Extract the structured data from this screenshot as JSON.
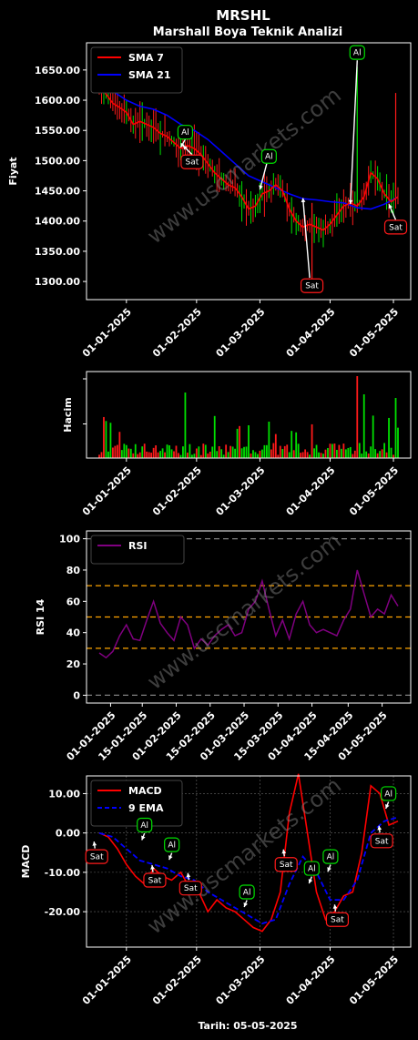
{
  "title": "MRSHL",
  "subtitle": "Marshall Boya Teknik Analizi",
  "footer_date": "Tarih: 05-05-2025",
  "watermark": "www.uscmarkets.com",
  "colors": {
    "bg": "#000000",
    "up": "#00e000",
    "down": "#ff1a1a",
    "sma7": "#ff0000",
    "sma21": "#0000ff",
    "rsi": "#800080",
    "macd": "#ff0000",
    "ema": "#0000ff",
    "lvl": "#ffa500",
    "gray": "#808080"
  },
  "chart_data": [
    {
      "type": "line",
      "panel": "price",
      "ylabel": "Fiyat",
      "yticks": [
        "1300.00",
        "1350.00",
        "1400.00",
        "1450.00",
        "1500.00",
        "1550.00",
        "1600.00",
        "1650.00"
      ],
      "ylim": [
        1270,
        1695
      ],
      "xticks": [
        "01-01-2025",
        "01-02-2025",
        "01-03-2025",
        "01-04-2025",
        "01-05-2025"
      ],
      "legend": [
        "SMA 7",
        "SMA 21"
      ],
      "legend_position": "top-left",
      "sma7": [
        [
          0,
          1625
        ],
        [
          3,
          1610
        ],
        [
          6,
          1595
        ],
        [
          9,
          1588
        ],
        [
          12,
          1580
        ],
        [
          15,
          1560
        ],
        [
          18,
          1565
        ],
        [
          21,
          1560
        ],
        [
          24,
          1555
        ],
        [
          27,
          1545
        ],
        [
          30,
          1540
        ],
        [
          33,
          1530
        ],
        [
          36,
          1520
        ],
        [
          39,
          1525
        ],
        [
          42,
          1520
        ],
        [
          45,
          1510
        ],
        [
          48,
          1495
        ],
        [
          51,
          1480
        ],
        [
          54,
          1470
        ],
        [
          57,
          1460
        ],
        [
          60,
          1455
        ],
        [
          63,
          1440
        ],
        [
          66,
          1420
        ],
        [
          69,
          1425
        ],
        [
          72,
          1445
        ],
        [
          75,
          1450
        ],
        [
          78,
          1460
        ],
        [
          81,
          1450
        ],
        [
          84,
          1420
        ],
        [
          87,
          1400
        ],
        [
          90,
          1390
        ],
        [
          93,
          1395
        ],
        [
          96,
          1390
        ],
        [
          99,
          1385
        ],
        [
          102,
          1395
        ],
        [
          105,
          1410
        ],
        [
          108,
          1425
        ],
        [
          111,
          1430
        ],
        [
          114,
          1425
        ],
        [
          117,
          1440
        ],
        [
          120,
          1480
        ],
        [
          123,
          1470
        ],
        [
          126,
          1445
        ],
        [
          129,
          1432
        ],
        [
          132,
          1440
        ]
      ],
      "sma21": [
        [
          0,
          1640
        ],
        [
          6,
          1615
        ],
        [
          12,
          1600
        ],
        [
          18,
          1590
        ],
        [
          24,
          1585
        ],
        [
          30,
          1575
        ],
        [
          36,
          1560
        ],
        [
          42,
          1550
        ],
        [
          48,
          1535
        ],
        [
          54,
          1515
        ],
        [
          60,
          1495
        ],
        [
          66,
          1475
        ],
        [
          72,
          1465
        ],
        [
          78,
          1455
        ],
        [
          84,
          1445
        ],
        [
          90,
          1437
        ],
        [
          96,
          1435
        ],
        [
          102,
          1432
        ],
        [
          108,
          1430
        ],
        [
          114,
          1422
        ],
        [
          120,
          1420
        ],
        [
          126,
          1428
        ],
        [
          132,
          1440
        ]
      ],
      "annotations": [
        {
          "label": "Al",
          "x": 38,
          "y": 1547,
          "kind": "buy"
        },
        {
          "label": "Sat",
          "x": 41,
          "y": 1498,
          "kind": "sell"
        },
        {
          "label": "Al",
          "x": 75,
          "y": 1507,
          "kind": "buy"
        },
        {
          "label": "Sat",
          "x": 94,
          "y": 1293,
          "kind": "sell"
        },
        {
          "label": "Al",
          "x": 114,
          "y": 1679,
          "kind": "buy"
        },
        {
          "label": "Sat",
          "x": 131,
          "y": 1390,
          "kind": "sell"
        }
      ]
    },
    {
      "type": "bar",
      "panel": "volume",
      "ylabel": "Hacim",
      "xticks": [
        "01-01-2025",
        "01-02-2025",
        "01-03-2025",
        "01-04-2025",
        "01-05-2025"
      ]
    },
    {
      "type": "line",
      "panel": "rsi",
      "ylabel": "RSI 14",
      "yticks": [
        "0",
        "20",
        "40",
        "60",
        "80",
        "100"
      ],
      "ylim": [
        -5,
        105
      ],
      "levels": [
        0,
        30,
        50,
        70,
        100
      ],
      "legend": [
        "RSI"
      ],
      "legend_position": "top-left",
      "xticks": [
        "01-01-2025",
        "15-01-2025",
        "01-02-2025",
        "15-02-2025",
        "01-03-2025",
        "15-03-2025",
        "01-04-2025",
        "15-04-2025",
        "01-05-2025"
      ],
      "rsi": [
        [
          0,
          27
        ],
        [
          3,
          24
        ],
        [
          6,
          28
        ],
        [
          9,
          38
        ],
        [
          12,
          45
        ],
        [
          15,
          36
        ],
        [
          18,
          35
        ],
        [
          21,
          48
        ],
        [
          24,
          60
        ],
        [
          27,
          46
        ],
        [
          30,
          40
        ],
        [
          33,
          35
        ],
        [
          36,
          50
        ],
        [
          39,
          45
        ],
        [
          42,
          30
        ],
        [
          45,
          36
        ],
        [
          48,
          32
        ],
        [
          51,
          38
        ],
        [
          54,
          42
        ],
        [
          57,
          45
        ],
        [
          60,
          38
        ],
        [
          63,
          40
        ],
        [
          66,
          55
        ],
        [
          69,
          60
        ],
        [
          72,
          73
        ],
        [
          75,
          55
        ],
        [
          78,
          38
        ],
        [
          81,
          48
        ],
        [
          84,
          36
        ],
        [
          87,
          52
        ],
        [
          90,
          60
        ],
        [
          93,
          45
        ],
        [
          96,
          40
        ],
        [
          99,
          42
        ],
        [
          102,
          40
        ],
        [
          105,
          38
        ],
        [
          108,
          48
        ],
        [
          111,
          55
        ],
        [
          114,
          80
        ],
        [
          117,
          65
        ],
        [
          120,
          50
        ],
        [
          123,
          55
        ],
        [
          126,
          52
        ],
        [
          129,
          64
        ],
        [
          132,
          57
        ]
      ]
    },
    {
      "type": "line",
      "panel": "macd",
      "ylabel": "MACD",
      "yticks": [
        "-20.00",
        "-10.00",
        "0.00",
        "10.00"
      ],
      "ylim": [
        -29,
        14.5
      ],
      "legend": [
        "MACD",
        "9 EMA"
      ],
      "legend_position": "top-left",
      "xticks": [
        "01-01-2025",
        "01-02-2025",
        "01-03-2025",
        "01-04-2025",
        "01-05-2025"
      ],
      "xlabel": "Tarih: 05-05-2025",
      "macd": [
        [
          0,
          0
        ],
        [
          4,
          -1
        ],
        [
          8,
          -4
        ],
        [
          12,
          -8
        ],
        [
          16,
          -11
        ],
        [
          20,
          -13
        ],
        [
          24,
          -9
        ],
        [
          28,
          -11
        ],
        [
          32,
          -12
        ],
        [
          36,
          -10
        ],
        [
          40,
          -14
        ],
        [
          44,
          -15
        ],
        [
          48,
          -20
        ],
        [
          52,
          -17
        ],
        [
          56,
          -19
        ],
        [
          60,
          -20
        ],
        [
          64,
          -22
        ],
        [
          68,
          -24
        ],
        [
          72,
          -25
        ],
        [
          76,
          -22
        ],
        [
          80,
          -15
        ],
        [
          84,
          5
        ],
        [
          88,
          15
        ],
        [
          92,
          0
        ],
        [
          96,
          -15
        ],
        [
          100,
          -22
        ],
        [
          104,
          -20
        ],
        [
          108,
          -16
        ],
        [
          112,
          -15
        ],
        [
          116,
          -5
        ],
        [
          120,
          12
        ],
        [
          124,
          10
        ],
        [
          128,
          2
        ],
        [
          132,
          3
        ]
      ],
      "ema": [
        [
          0,
          0
        ],
        [
          6,
          -1
        ],
        [
          12,
          -4
        ],
        [
          18,
          -7
        ],
        [
          24,
          -8
        ],
        [
          30,
          -9
        ],
        [
          36,
          -11
        ],
        [
          42,
          -12
        ],
        [
          48,
          -15
        ],
        [
          54,
          -17
        ],
        [
          60,
          -19
        ],
        [
          66,
          -21
        ],
        [
          72,
          -23
        ],
        [
          78,
          -22
        ],
        [
          84,
          -13
        ],
        [
          90,
          -6
        ],
        [
          96,
          -10
        ],
        [
          102,
          -17
        ],
        [
          108,
          -17
        ],
        [
          114,
          -12
        ],
        [
          120,
          0
        ],
        [
          126,
          3
        ],
        [
          132,
          4
        ]
      ],
      "annotations": [
        {
          "label": "Sat",
          "x": 6,
          "y": -6,
          "kind": "sell"
        },
        {
          "label": "Al",
          "x": 34,
          "y": 2,
          "kind": "buy"
        },
        {
          "label": "Sat",
          "x": 40,
          "y": -12,
          "kind": "sell"
        },
        {
          "label": "Al",
          "x": 50,
          "y": -3,
          "kind": "buy"
        },
        {
          "label": "Sat",
          "x": 61,
          "y": -14,
          "kind": "sell"
        },
        {
          "label": "Al",
          "x": 94,
          "y": -15,
          "kind": "buy"
        },
        {
          "label": "Sat",
          "x": 117,
          "y": -8,
          "kind": "sell"
        },
        {
          "label": "Al",
          "x": 132,
          "y": -9,
          "kind": "buy"
        },
        {
          "label": "Al",
          "x": 143,
          "y": -6,
          "kind": "buy"
        },
        {
          "label": "Sat",
          "x": 147,
          "y": -22,
          "kind": "sell"
        },
        {
          "label": "Al",
          "x": 177,
          "y": 10,
          "kind": "buy"
        },
        {
          "label": "Sat",
          "x": 173,
          "y": -2,
          "kind": "sell"
        }
      ]
    }
  ]
}
